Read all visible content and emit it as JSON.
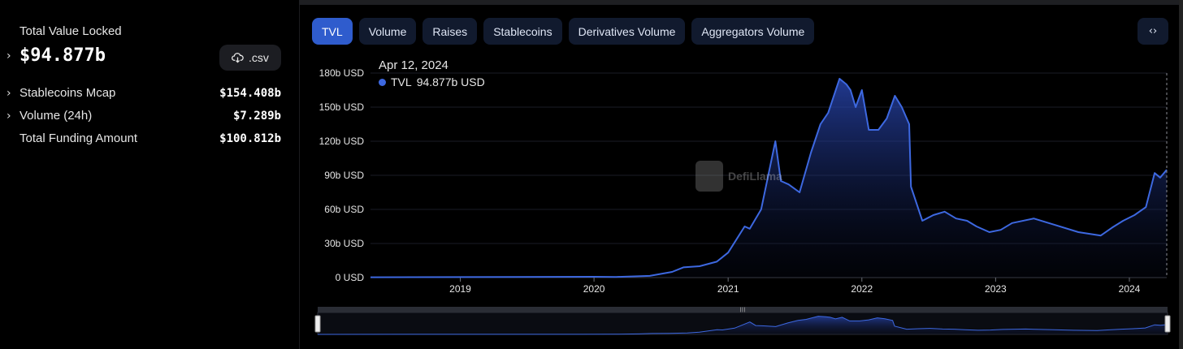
{
  "summary": {
    "tvl_label": "Total Value Locked",
    "tvl_value": "$94.877b",
    "csv_label": ".csv",
    "stats": [
      {
        "name": "Stablecoins Mcap",
        "value": "$154.408b",
        "expandable": true
      },
      {
        "name": "Volume (24h)",
        "value": "$7.289b",
        "expandable": true
      },
      {
        "name": "Total Funding Amount",
        "value": "$100.812b",
        "expandable": false
      }
    ]
  },
  "tabs": [
    {
      "label": "TVL",
      "active": true
    },
    {
      "label": "Volume",
      "active": false
    },
    {
      "label": "Raises",
      "active": false
    },
    {
      "label": "Stablecoins",
      "active": false
    },
    {
      "label": "Derivatives Volume",
      "active": false
    },
    {
      "label": "Aggregators Volume",
      "active": false
    }
  ],
  "embed_icon": "code-brackets-icon",
  "tooltip": {
    "date": "Apr 12, 2024",
    "series": "TVL",
    "value": "94.877b USD"
  },
  "watermark": "DefiLlama",
  "colors": {
    "accent": "#2f5ccd",
    "line": "#3d68e0",
    "tab_bg": "#111a2e"
  },
  "chart_data": {
    "type": "area",
    "title": "",
    "xlabel": "",
    "ylabel": "",
    "y_ticks": [
      "0 USD",
      "30b USD",
      "60b USD",
      "90b USD",
      "120b USD",
      "150b USD",
      "180b USD"
    ],
    "ylim": [
      0,
      180
    ],
    "x_ticks": [
      "2019",
      "2020",
      "2021",
      "2022",
      "2023",
      "2024"
    ],
    "xlim": [
      "2018-05-01",
      "2024-04-12"
    ],
    "grid": true,
    "series": [
      {
        "name": "TVL",
        "points": [
          [
            "2018-05-01",
            0.3
          ],
          [
            "2019-01-01",
            0.4
          ],
          [
            "2019-06-01",
            0.6
          ],
          [
            "2020-01-01",
            0.7
          ],
          [
            "2020-03-01",
            0.6
          ],
          [
            "2020-06-01",
            1.5
          ],
          [
            "2020-08-01",
            5
          ],
          [
            "2020-09-01",
            9
          ],
          [
            "2020-10-15",
            10
          ],
          [
            "2020-12-01",
            14
          ],
          [
            "2021-01-01",
            22
          ],
          [
            "2021-02-15",
            45
          ],
          [
            "2021-03-01",
            43
          ],
          [
            "2021-04-01",
            60
          ],
          [
            "2021-05-10",
            120
          ],
          [
            "2021-05-25",
            85
          ],
          [
            "2021-06-15",
            82
          ],
          [
            "2021-07-15",
            75
          ],
          [
            "2021-08-15",
            110
          ],
          [
            "2021-09-10",
            135
          ],
          [
            "2021-10-01",
            145
          ],
          [
            "2021-11-01",
            175
          ],
          [
            "2021-11-20",
            170
          ],
          [
            "2021-12-01",
            165
          ],
          [
            "2021-12-15",
            150
          ],
          [
            "2022-01-01",
            165
          ],
          [
            "2022-01-20",
            130
          ],
          [
            "2022-02-15",
            130
          ],
          [
            "2022-03-10",
            140
          ],
          [
            "2022-04-01",
            160
          ],
          [
            "2022-04-20",
            150
          ],
          [
            "2022-05-10",
            135
          ],
          [
            "2022-05-15",
            80
          ],
          [
            "2022-06-15",
            50
          ],
          [
            "2022-07-15",
            55
          ],
          [
            "2022-08-15",
            58
          ],
          [
            "2022-09-15",
            52
          ],
          [
            "2022-10-15",
            50
          ],
          [
            "2022-11-10",
            45
          ],
          [
            "2022-12-15",
            40
          ],
          [
            "2023-01-15",
            42
          ],
          [
            "2023-02-15",
            48
          ],
          [
            "2023-04-15",
            52
          ],
          [
            "2023-06-15",
            46
          ],
          [
            "2023-08-15",
            40
          ],
          [
            "2023-10-15",
            37
          ],
          [
            "2023-11-15",
            44
          ],
          [
            "2023-12-15",
            50
          ],
          [
            "2024-01-15",
            55
          ],
          [
            "2024-02-15",
            62
          ],
          [
            "2024-03-10",
            92
          ],
          [
            "2024-03-25",
            88
          ],
          [
            "2024-04-12",
            94.877
          ]
        ]
      }
    ]
  }
}
